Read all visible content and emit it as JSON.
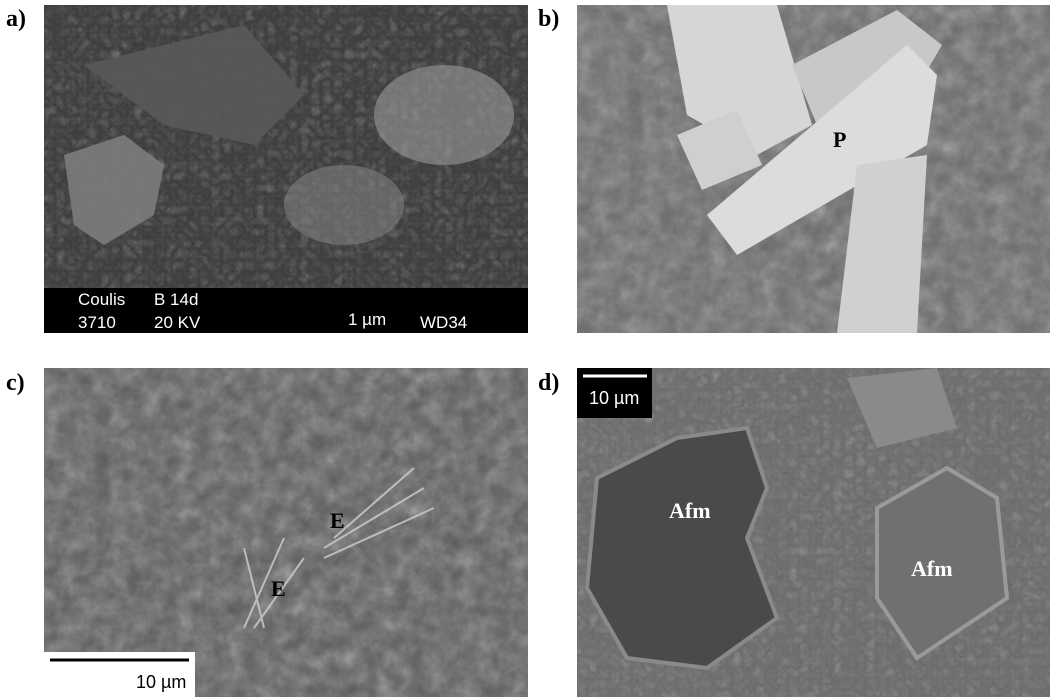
{
  "panels": [
    {
      "label": "a)",
      "info_bar": [
        "Coulis",
        "B 14d",
        "3710",
        "20 KV",
        "1 µm",
        "WD34"
      ]
    },
    {
      "label": "b)",
      "annotations": [
        "P"
      ]
    },
    {
      "label": "c)",
      "annotations": [
        "E",
        "E"
      ],
      "scale_bar": "10 µm"
    },
    {
      "label": "d)",
      "annotations": [
        "Afm",
        "Afm"
      ],
      "scale_bar": "10 µm"
    }
  ]
}
